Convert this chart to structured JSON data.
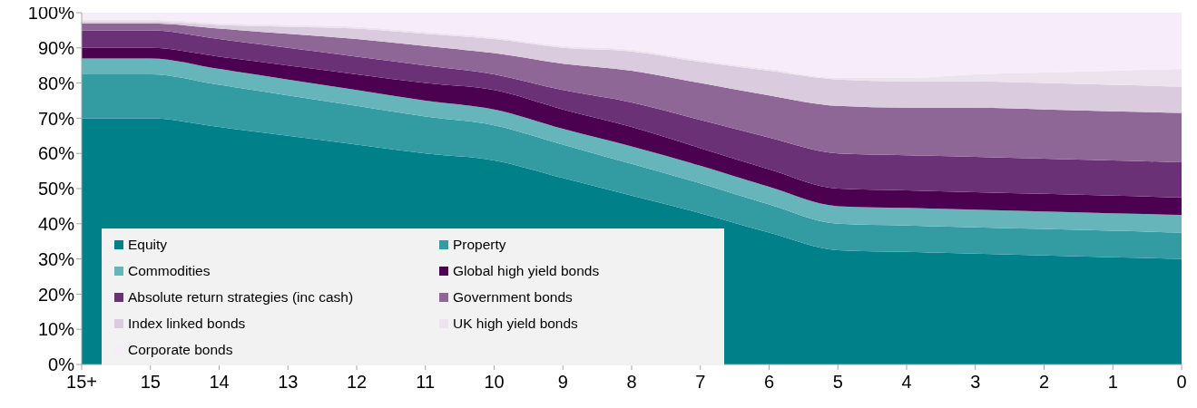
{
  "chart_data": {
    "type": "area",
    "stacked": true,
    "categories": [
      "15+",
      "15",
      "14",
      "13",
      "12",
      "11",
      "10",
      "9",
      "8",
      "7",
      "6",
      "5",
      "4",
      "3",
      "2",
      "1",
      "0"
    ],
    "series": [
      {
        "name": "Equity",
        "color": "#00818a",
        "values": [
          70,
          70,
          67.5,
          65,
          62.5,
          60,
          58,
          53,
          48,
          43,
          37.5,
          32.5,
          32,
          31.5,
          31,
          30.5,
          30
        ]
      },
      {
        "name": "Property",
        "color": "#339ba2",
        "values": [
          12.5,
          12.5,
          12,
          11.5,
          11,
          10.5,
          10,
          9.5,
          9,
          8.5,
          8,
          7.5,
          7.5,
          7.5,
          7.5,
          7.5,
          7.5
        ]
      },
      {
        "name": "Commodities",
        "color": "#66b5ba",
        "values": [
          4.5,
          4.5,
          4.5,
          4.5,
          4.5,
          4.5,
          4.5,
          4.5,
          5,
          5,
          5,
          5,
          5,
          5,
          5,
          5,
          5
        ]
      },
      {
        "name": "Global high yield bonds",
        "color": "#4b0050",
        "values": [
          3,
          3,
          3.5,
          4,
          4.5,
          5,
          5.5,
          5.5,
          5.5,
          5,
          5,
          5,
          5,
          5,
          5,
          5,
          5
        ]
      },
      {
        "name": "Absolute return strategies (inc cash)",
        "color": "#6b3177",
        "values": [
          5,
          5,
          5,
          5,
          5,
          5,
          4.5,
          5.5,
          7,
          8,
          9,
          10,
          10,
          10,
          10,
          10,
          10
        ]
      },
      {
        "name": "Government bonds",
        "color": "#8f6797",
        "values": [
          2,
          2,
          3,
          4,
          5,
          5.5,
          6,
          7.5,
          9,
          10.5,
          12,
          13.5,
          13.5,
          14,
          14,
          14,
          14
        ]
      },
      {
        "name": "Index linked bonds",
        "color": "#dacbde",
        "values": [
          0.5,
          0.5,
          1,
          2,
          3,
          3.5,
          4,
          4.5,
          5.5,
          6,
          7,
          7.5,
          7.5,
          7.5,
          7.5,
          7.5,
          7.5
        ]
      },
      {
        "name": "UK high yield bonds",
        "color": "#ece3ef",
        "values": [
          0.5,
          0.5,
          0.5,
          0.5,
          0.5,
          0.5,
          0.5,
          0.5,
          0.5,
          0.5,
          0.5,
          0.5,
          1,
          2,
          3,
          4,
          5
        ]
      },
      {
        "name": "Corporate bonds",
        "color": "#f7ecf9",
        "values": [
          2,
          2,
          3,
          3.5,
          4,
          5.5,
          7,
          9.5,
          10.5,
          13.5,
          16,
          18.5,
          18.5,
          17.5,
          17,
          16.5,
          16
        ]
      }
    ],
    "ylim": [
      0,
      100
    ],
    "yticks": [
      {
        "value": 0,
        "label": "0%"
      },
      {
        "value": 10,
        "label": "10%"
      },
      {
        "value": 20,
        "label": "20%"
      },
      {
        "value": 30,
        "label": "30%"
      },
      {
        "value": 40,
        "label": "40%"
      },
      {
        "value": 50,
        "label": "50%"
      },
      {
        "value": 60,
        "label": "60%"
      },
      {
        "value": 70,
        "label": "70%"
      },
      {
        "value": 80,
        "label": "80%"
      },
      {
        "value": 90,
        "label": "90%"
      },
      {
        "value": 100,
        "label": "100%"
      }
    ],
    "legend": "bottom left"
  }
}
